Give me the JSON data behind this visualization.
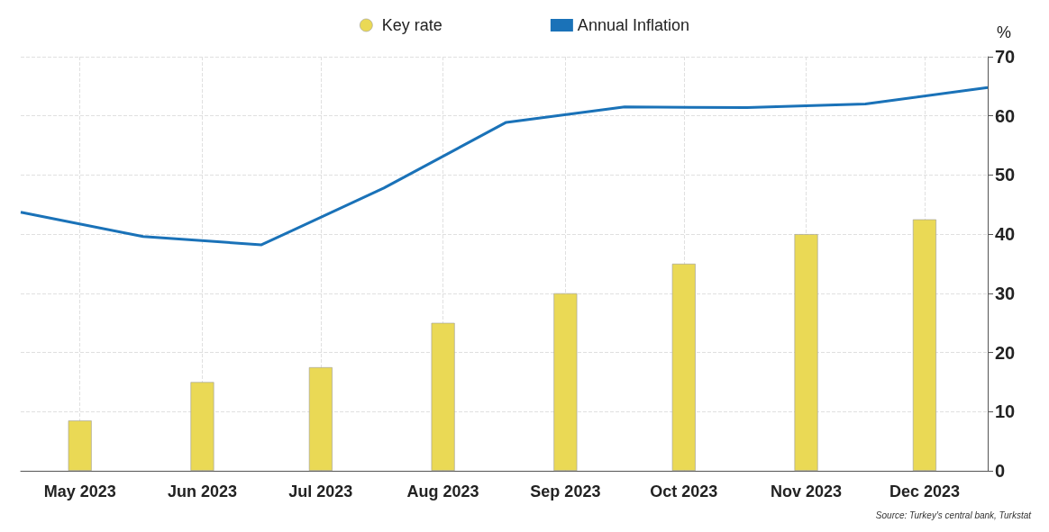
{
  "chart_data": {
    "type": "bar",
    "series": [
      {
        "name": "Key rate",
        "color": "#ead955",
        "x": [
          "2023-05-16",
          "2023-06-16",
          "2023-07-16",
          "2023-08-16",
          "2023-09-16",
          "2023-10-16",
          "2023-11-16",
          "2023-12-16"
        ],
        "values": [
          8.5,
          15,
          17.5,
          25,
          30,
          35,
          40,
          42.5
        ]
      },
      {
        "name": "Annual Inflation",
        "type": "line",
        "color": "#1a72b8",
        "x": [
          "2023-05-01",
          "2023-06-01",
          "2023-07-01",
          "2023-08-01",
          "2023-09-01",
          "2023-10-01",
          "2023-11-01",
          "2023-12-01",
          "2024-01-01"
        ],
        "values": [
          43.7,
          39.6,
          38.2,
          47.8,
          58.9,
          61.5,
          61.4,
          62.0,
          64.8
        ]
      }
    ],
    "xlim": [
      "2023-05-01",
      "2024-01-01"
    ],
    "xticks": [
      {
        "value": "2023-05-16",
        "label": "May 2023"
      },
      {
        "value": "2023-06-16",
        "label": "Jun 2023"
      },
      {
        "value": "2023-07-16",
        "label": "Jul 2023"
      },
      {
        "value": "2023-08-16",
        "label": "Aug 2023"
      },
      {
        "value": "2023-09-16",
        "label": "Sep 2023"
      },
      {
        "value": "2023-10-16",
        "label": "Oct 2023"
      },
      {
        "value": "2023-11-16",
        "label": "Nov 2023"
      },
      {
        "value": "2023-12-16",
        "label": "Dec 2023"
      }
    ],
    "ylabel": "%",
    "ylim": [
      0,
      70
    ],
    "yticks": [
      0,
      10,
      20,
      30,
      40,
      50,
      60,
      70
    ],
    "grid": true,
    "legend": "top",
    "marker": "none",
    "line_style": "solid",
    "annotations": [
      "Source: Turkey's central bank, Turkstat"
    ]
  }
}
